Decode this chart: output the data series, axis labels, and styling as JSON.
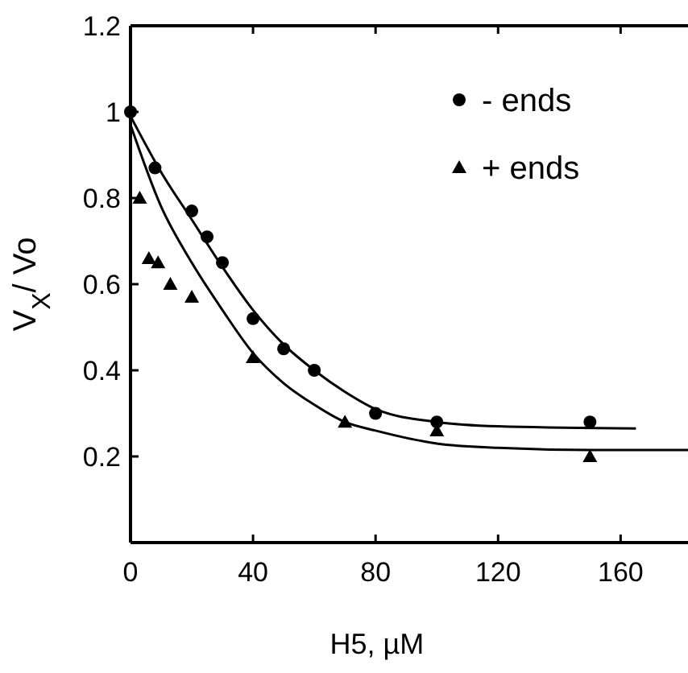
{
  "chart_data": {
    "type": "scatter",
    "xlabel": "H5, µM",
    "ylabel": "V$_{X}$/ Vo",
    "xlim": [
      0,
      182
    ],
    "ylim": [
      0,
      1.2
    ],
    "xticks": [
      0,
      40,
      80,
      120,
      160
    ],
    "yticks": [
      0.2,
      0.4,
      0.6,
      0.8,
      1,
      1.2
    ],
    "legend": "top right",
    "grid": false,
    "series": [
      {
        "name": "- ends",
        "color": "#000000",
        "marker": "circle",
        "x": [
          0,
          8,
          20,
          25,
          30,
          40,
          50,
          60,
          80,
          100,
          150
        ],
        "values": [
          1,
          0.87,
          0.77,
          0.71,
          0.65,
          0.52,
          0.45,
          0.4,
          0.3,
          0.28,
          0.28
        ]
      },
      {
        "name": "+ ends",
        "color": "#000000",
        "marker": "triangle",
        "x": [
          3,
          6,
          9,
          13,
          20,
          40,
          70,
          100,
          150
        ],
        "values": [
          0.8,
          0.66,
          0.65,
          0.6,
          0.57,
          0.43,
          0.28,
          0.26,
          0.2
        ]
      },
      {
        "type": "line",
        "color": "#000000",
        "marker": "none",
        "x": [
          0,
          10,
          20,
          30,
          40,
          50,
          60,
          70,
          80,
          100,
          120,
          165
        ],
        "values": [
          0.99,
          0.86,
          0.75,
          0.64,
          0.54,
          0.46,
          0.4,
          0.35,
          0.31,
          0.28,
          0.27,
          0.265
        ]
      },
      {
        "type": "line",
        "color": "#000000",
        "marker": "none",
        "x": [
          0,
          10,
          20,
          30,
          40,
          50,
          60,
          70,
          80,
          100,
          120,
          150,
          182
        ],
        "values": [
          0.97,
          0.78,
          0.65,
          0.54,
          0.44,
          0.37,
          0.32,
          0.28,
          0.26,
          0.23,
          0.22,
          0.215,
          0.215
        ]
      }
    ]
  }
}
